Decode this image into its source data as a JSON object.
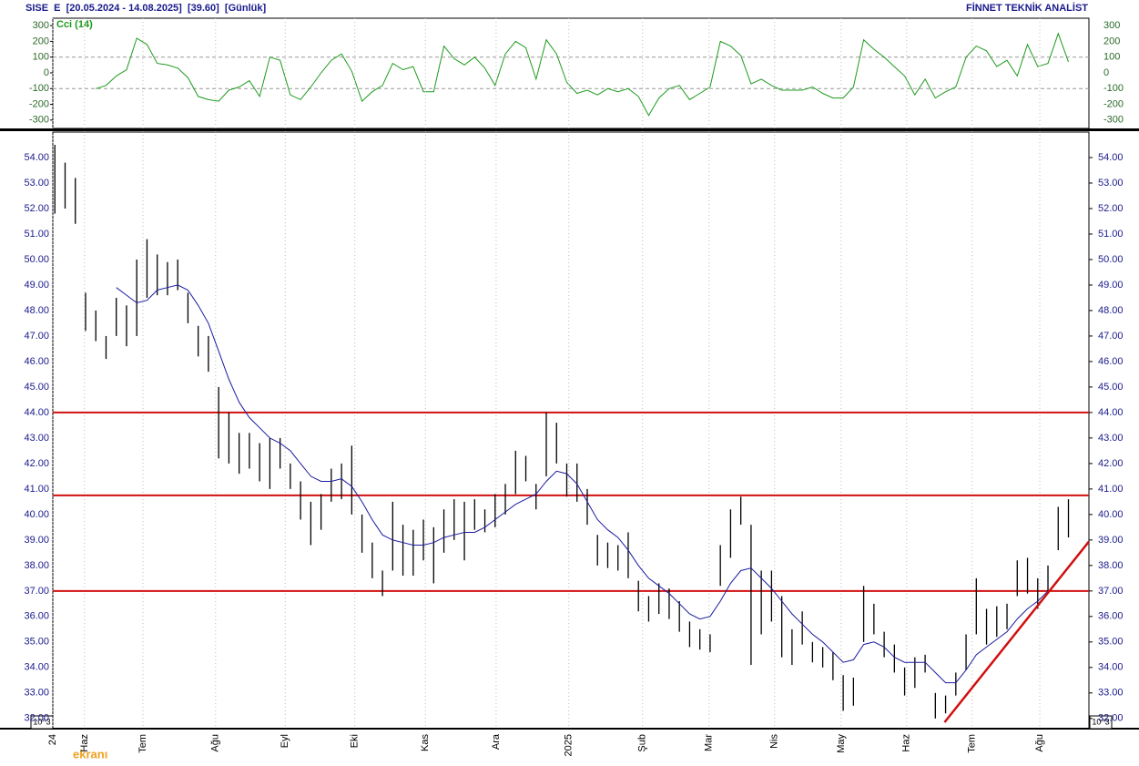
{
  "header": {
    "left": "SISE  E  [20.05.2024 - 14.08.2025]  [39.60]  [Günlük]",
    "right": "FİNNET TEKNİK ANALİST",
    "scale_left": "10^3",
    "scale_right": "10^3",
    "watermark": "ekranı"
  },
  "chart_data": [
    {
      "type": "line",
      "title": "Cci (14)",
      "color": "#1e9a1e",
      "ylim": [
        -353,
        347
      ],
      "yticks": [
        300,
        200,
        100,
        0,
        -100,
        -200,
        -300
      ],
      "reference_lines": [
        100,
        -100
      ],
      "xlim": [
        -0.2,
        101
      ],
      "values": [
        null,
        null,
        null,
        null,
        -100,
        -80,
        -20,
        20,
        220,
        180,
        60,
        50,
        30,
        -30,
        -150,
        -170,
        -180,
        -110,
        -90,
        -50,
        -150,
        100,
        80,
        -140,
        -170,
        -90,
        0,
        80,
        120,
        10,
        -180,
        -120,
        -80,
        60,
        20,
        40,
        -120,
        -120,
        170,
        90,
        50,
        100,
        30,
        -80,
        120,
        200,
        160,
        -40,
        210,
        120,
        -60,
        -130,
        -110,
        -140,
        -100,
        -120,
        -100,
        -150,
        -270,
        -160,
        -100,
        -80,
        -170,
        -130,
        -90,
        200,
        170,
        110,
        -70,
        -40,
        -80,
        -110,
        -110,
        -110,
        -90,
        -130,
        -160,
        -160,
        -90,
        210,
        150,
        100,
        40,
        -20,
        -140,
        -40,
        -160,
        -120,
        -90,
        100,
        170,
        140,
        40,
        80,
        -20,
        180,
        40,
        60,
        250,
        70
      ]
    },
    {
      "type": "ohlc",
      "color": "#000000",
      "ylim": [
        31.6,
        55.0
      ],
      "xlim": [
        -0.2,
        101
      ],
      "yticks": [
        {
          "value": 32,
          "label": "32.00"
        },
        {
          "value": 33,
          "label": "33.00"
        },
        {
          "value": 34,
          "label": "34.00"
        },
        {
          "value": 35,
          "label": "35.00"
        },
        {
          "value": 36,
          "label": "36.00"
        },
        {
          "value": 37,
          "label": "37.00"
        },
        {
          "value": 38,
          "label": "38.00"
        },
        {
          "value": 39,
          "label": "39.00"
        },
        {
          "value": 40,
          "label": "40.00"
        },
        {
          "value": 41,
          "label": "41.00"
        },
        {
          "value": 42,
          "label": "42.00"
        },
        {
          "value": 43,
          "label": "43.00"
        },
        {
          "value": 44,
          "label": "44.00"
        },
        {
          "value": 45,
          "label": "45.00"
        },
        {
          "value": 46,
          "label": "46.00"
        },
        {
          "value": 47,
          "label": "47.00"
        },
        {
          "value": 48,
          "label": "48.00"
        },
        {
          "value": 49,
          "label": "49.00"
        },
        {
          "value": 50,
          "label": "50.00"
        },
        {
          "value": 51,
          "label": "51.00"
        },
        {
          "value": 52,
          "label": "52.00"
        },
        {
          "value": 53,
          "label": "53.00"
        },
        {
          "value": 54,
          "label": "54.00"
        }
      ],
      "xticks": [
        {
          "value": -0.2,
          "label": "24"
        },
        {
          "value": 2.9,
          "label": "Haz"
        },
        {
          "value": 8.6,
          "label": "Tem"
        },
        {
          "value": 15.7,
          "label": "Ağu"
        },
        {
          "value": 22.5,
          "label": "Eyl"
        },
        {
          "value": 29.3,
          "label": "Eki"
        },
        {
          "value": 36.2,
          "label": "Kas"
        },
        {
          "value": 43.1,
          "label": "Ara"
        },
        {
          "value": 50.2,
          "label": "2025"
        },
        {
          "value": 57.4,
          "label": "Şub"
        },
        {
          "value": 63.9,
          "label": "Mar"
        },
        {
          "value": 70.3,
          "label": "Nis"
        },
        {
          "value": 76.8,
          "label": "May"
        },
        {
          "value": 83.2,
          "label": "Haz"
        },
        {
          "value": 89.6,
          "label": "Tem"
        },
        {
          "value": 96.2,
          "label": "Ağu"
        }
      ],
      "high": [
        54.5,
        53.8,
        53.2,
        48.7,
        48,
        47,
        48.5,
        48.2,
        50,
        50.8,
        50.2,
        49.9,
        50,
        48.7,
        47.4,
        47,
        45,
        44,
        43.2,
        43.2,
        42.8,
        43,
        43,
        42,
        41.3,
        40.5,
        40.8,
        41.8,
        42,
        42.7,
        40,
        38.9,
        37.8,
        40.5,
        39.6,
        39.4,
        39.8,
        39.5,
        40.2,
        40.6,
        40.5,
        40.6,
        40.2,
        40.8,
        41.2,
        42.5,
        42.3,
        41.2,
        44,
        43.6,
        42,
        42,
        41,
        39.2,
        38.9,
        38.8,
        39.3,
        37.4,
        36.8,
        37.3,
        37.1,
        36.6,
        35.8,
        35.5,
        35.3,
        38.8,
        40.2,
        40.7,
        39.6,
        37.8,
        37.8,
        36.8,
        35.5,
        36.2,
        35,
        34.8,
        34.6,
        33.7,
        33.6,
        37.2,
        36.5,
        35.4,
        34.9,
        34,
        34.4,
        34.5,
        33,
        32.9,
        33.8,
        35.3,
        37.5,
        36.3,
        36.4,
        36.5,
        38.2,
        38.3,
        37.5,
        38,
        40.3,
        40.6
      ],
      "low": [
        51.8,
        52,
        51.4,
        47.2,
        46.8,
        46.1,
        47,
        46.6,
        47,
        48.5,
        48.6,
        48.6,
        48.8,
        47.5,
        46.2,
        45.6,
        42.2,
        42,
        41.6,
        41.8,
        41.3,
        41,
        41.8,
        41,
        39.8,
        38.8,
        39.4,
        40.5,
        40.6,
        40,
        38.5,
        37.5,
        36.8,
        37.8,
        37.6,
        37.6,
        38.2,
        37.3,
        38.5,
        39,
        38.2,
        39.4,
        39.3,
        39.5,
        40,
        40.8,
        41.3,
        40.2,
        41.5,
        42,
        40.7,
        40.5,
        39.6,
        38,
        37.9,
        37.8,
        37.5,
        36.2,
        35.8,
        36.1,
        35.9,
        35.4,
        34.8,
        34.7,
        34.6,
        37.2,
        38.3,
        39.6,
        34.1,
        35.3,
        35.8,
        34.4,
        34.1,
        34.9,
        34.2,
        34,
        33.5,
        32.3,
        32.5,
        35,
        35.3,
        34.4,
        33.8,
        32.9,
        33.2,
        33.8,
        32,
        32.2,
        32.9,
        33.9,
        35.3,
        34.9,
        35.2,
        35.5,
        36.8,
        36.9,
        36.3,
        37,
        38.6,
        39.1
      ],
      "moving_average": {
        "color": "#1a1aa0",
        "values": [
          null,
          null,
          null,
          null,
          null,
          null,
          48.9,
          48.6,
          48.3,
          48.4,
          48.8,
          48.9,
          49,
          48.8,
          48.2,
          47.5,
          46.4,
          45.3,
          44.4,
          43.8,
          43.4,
          43,
          42.8,
          42.5,
          42,
          41.5,
          41.3,
          41.3,
          41.4,
          41.1,
          40.5,
          39.8,
          39.2,
          39,
          38.9,
          38.8,
          38.8,
          38.9,
          39.1,
          39.2,
          39.3,
          39.3,
          39.5,
          39.8,
          40.1,
          40.4,
          40.6,
          40.8,
          41.3,
          41.7,
          41.6,
          41.2,
          40.5,
          39.8,
          39.4,
          39.1,
          38.6,
          38,
          37.5,
          37.2,
          36.9,
          36.5,
          36.1,
          35.9,
          36,
          36.6,
          37.3,
          37.8,
          37.9,
          37.5,
          37.1,
          36.6,
          36.1,
          35.7,
          35.3,
          35,
          34.6,
          34.2,
          34.3,
          34.9,
          35,
          34.8,
          34.4,
          34.2,
          34.2,
          34.2,
          33.8,
          33.4,
          33.4,
          33.9,
          34.5,
          34.8,
          35.1,
          35.4,
          35.9,
          36.3,
          36.6,
          37,
          null,
          null
        ]
      },
      "horizontal_lines": {
        "color": "#d01010",
        "values": [
          44.0,
          40.75,
          37.0
        ]
      },
      "trendline": {
        "color": "#d01010",
        "x": [
          86.9,
          101
        ],
        "y": [
          31.85,
          38.94
        ]
      }
    }
  ]
}
